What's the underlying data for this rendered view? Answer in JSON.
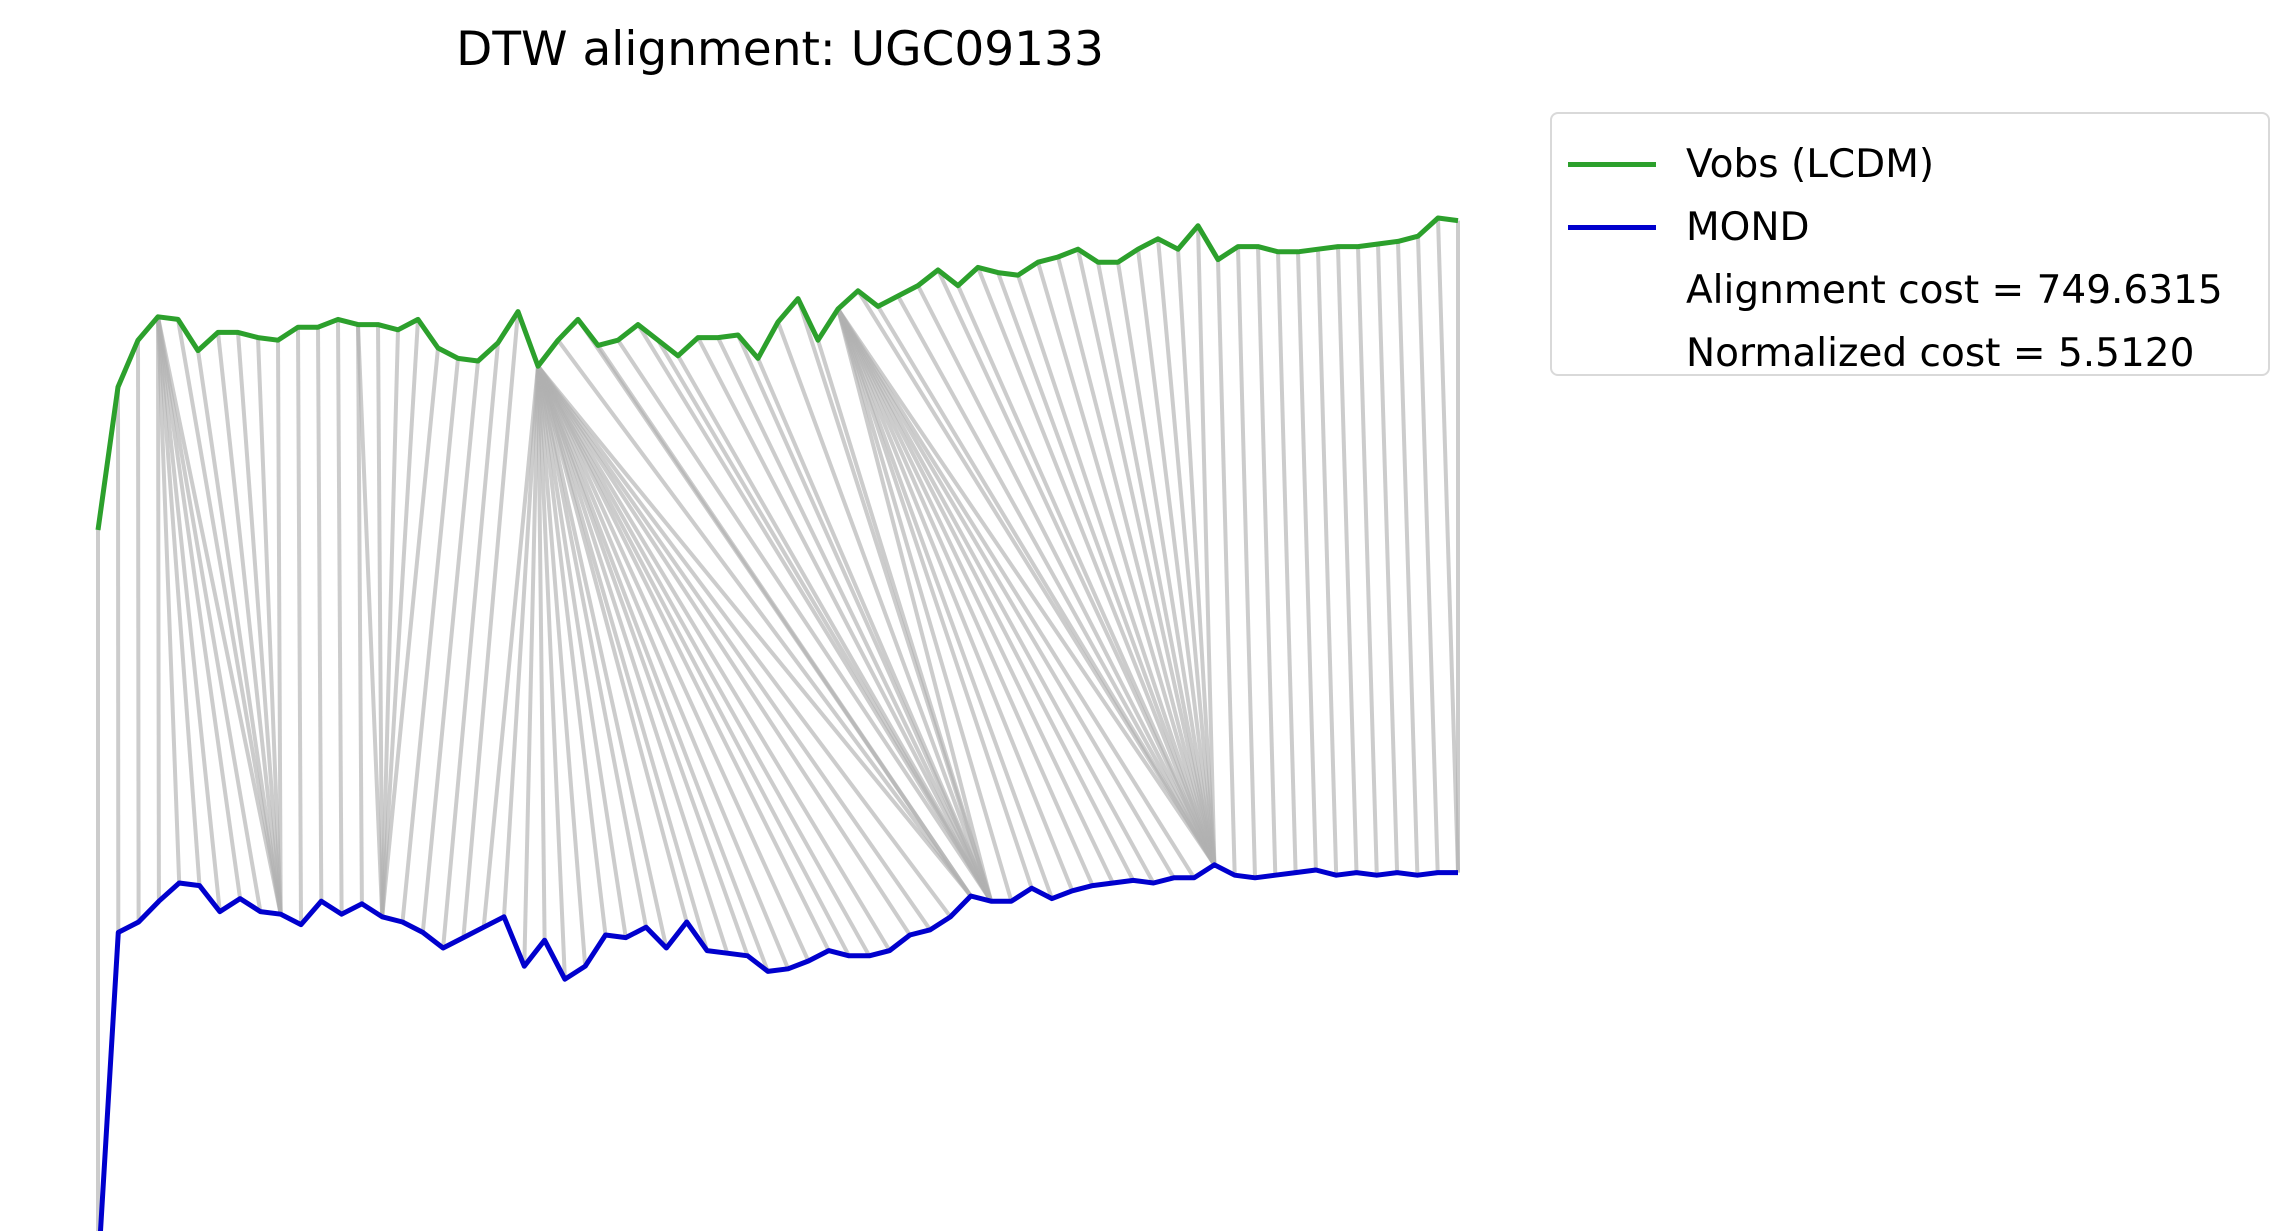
{
  "chart_data": {
    "type": "line",
    "title": "DTW alignment: UGC09133",
    "xlabel": "",
    "ylabel": "",
    "axes_visible": false,
    "grid": false,
    "legend_position": "outside-top-right",
    "series": [
      {
        "name": "Vobs (LCDM)",
        "color": "#2ca02c",
        "values": [
          0,
          55,
          73,
          82,
          81,
          69,
          76,
          76,
          74,
          73,
          78,
          78,
          81,
          79,
          79,
          77,
          81,
          70,
          66,
          65,
          72,
          84,
          63,
          73,
          81,
          71,
          73,
          79,
          73,
          67,
          74,
          74,
          75,
          66,
          80,
          89,
          73,
          85,
          92,
          86,
          90,
          94,
          100,
          94,
          101,
          99,
          98,
          103,
          105,
          108,
          103,
          103,
          108,
          112,
          108,
          117,
          104,
          109,
          109,
          107,
          107,
          108,
          109,
          109,
          110,
          111,
          113,
          120,
          119
        ]
      },
      {
        "name": "MOND",
        "color": "#0000cd",
        "values": [
          -125,
          6,
          10,
          18,
          25,
          24,
          14,
          19,
          14,
          13,
          9,
          18,
          13,
          17,
          12,
          10,
          6,
          0,
          4,
          8,
          12,
          -7,
          3,
          -12,
          -7,
          5,
          4,
          8,
          0,
          10,
          -1,
          -2,
          -3,
          -9,
          -8,
          -5,
          -1,
          -3,
          -3,
          -1,
          5,
          7,
          12,
          20,
          18,
          18,
          23,
          19,
          22,
          24,
          25,
          26,
          25,
          27,
          27,
          32,
          28,
          27,
          28,
          29,
          30,
          28,
          29,
          28,
          29,
          28,
          29,
          29
        ]
      }
    ],
    "alignment_path": [
      [
        0,
        0
      ],
      [
        1,
        1
      ],
      [
        2,
        2
      ],
      [
        3,
        3
      ],
      [
        3,
        4
      ],
      [
        3,
        5
      ],
      [
        3,
        6
      ],
      [
        3,
        7
      ],
      [
        3,
        8
      ],
      [
        3,
        9
      ],
      [
        4,
        9
      ],
      [
        5,
        9
      ],
      [
        6,
        9
      ],
      [
        7,
        9
      ],
      [
        8,
        9
      ],
      [
        9,
        9
      ],
      [
        10,
        10
      ],
      [
        11,
        11
      ],
      [
        12,
        12
      ],
      [
        13,
        13
      ],
      [
        13,
        14
      ],
      [
        14,
        14
      ],
      [
        15,
        14
      ],
      [
        16,
        14
      ],
      [
        17,
        14
      ],
      [
        18,
        15
      ],
      [
        19,
        16
      ],
      [
        20,
        17
      ],
      [
        21,
        18
      ],
      [
        22,
        19
      ],
      [
        22,
        20
      ],
      [
        22,
        21
      ],
      [
        22,
        22
      ],
      [
        22,
        23
      ],
      [
        22,
        24
      ],
      [
        22,
        25
      ],
      [
        22,
        26
      ],
      [
        22,
        27
      ],
      [
        22,
        28
      ],
      [
        22,
        29
      ],
      [
        22,
        30
      ],
      [
        22,
        31
      ],
      [
        22,
        32
      ],
      [
        22,
        33
      ],
      [
        22,
        34
      ],
      [
        22,
        35
      ],
      [
        22,
        36
      ],
      [
        22,
        37
      ],
      [
        22,
        38
      ],
      [
        22,
        39
      ],
      [
        22,
        40
      ],
      [
        22,
        41
      ],
      [
        22,
        42
      ],
      [
        22,
        43
      ],
      [
        23,
        43
      ],
      [
        24,
        43
      ],
      [
        25,
        43
      ],
      [
        26,
        44
      ],
      [
        27,
        44
      ],
      [
        28,
        44
      ],
      [
        29,
        44
      ],
      [
        30,
        44
      ],
      [
        31,
        44
      ],
      [
        32,
        44
      ],
      [
        33,
        44
      ],
      [
        34,
        44
      ],
      [
        35,
        44
      ],
      [
        36,
        44
      ],
      [
        37,
        44
      ],
      [
        37,
        45
      ],
      [
        37,
        46
      ],
      [
        37,
        47
      ],
      [
        37,
        48
      ],
      [
        37,
        49
      ],
      [
        37,
        50
      ],
      [
        37,
        51
      ],
      [
        37,
        52
      ],
      [
        37,
        53
      ],
      [
        37,
        54
      ],
      [
        37,
        55
      ],
      [
        38,
        55
      ],
      [
        39,
        55
      ],
      [
        40,
        55
      ],
      [
        41,
        55
      ],
      [
        42,
        55
      ],
      [
        43,
        55
      ],
      [
        44,
        55
      ],
      [
        45,
        55
      ],
      [
        46,
        55
      ],
      [
        47,
        55
      ],
      [
        48,
        55
      ],
      [
        49,
        55
      ],
      [
        50,
        55
      ],
      [
        51,
        55
      ],
      [
        52,
        55
      ],
      [
        53,
        55
      ],
      [
        54,
        55
      ],
      [
        55,
        55
      ],
      [
        56,
        56
      ],
      [
        57,
        57
      ],
      [
        58,
        58
      ],
      [
        59,
        59
      ],
      [
        60,
        60
      ],
      [
        61,
        61
      ],
      [
        62,
        62
      ],
      [
        63,
        63
      ],
      [
        64,
        64
      ],
      [
        65,
        65
      ],
      [
        66,
        66
      ],
      [
        67,
        67
      ],
      [
        68,
        67
      ]
    ],
    "legend": {
      "entries": [
        "Vobs (LCDM)",
        "MOND"
      ],
      "annotations": [
        "Alignment cost = 749.6315",
        "Normalized cost = 5.5120"
      ]
    },
    "colors": {
      "connector": "#b0b0b0"
    }
  }
}
